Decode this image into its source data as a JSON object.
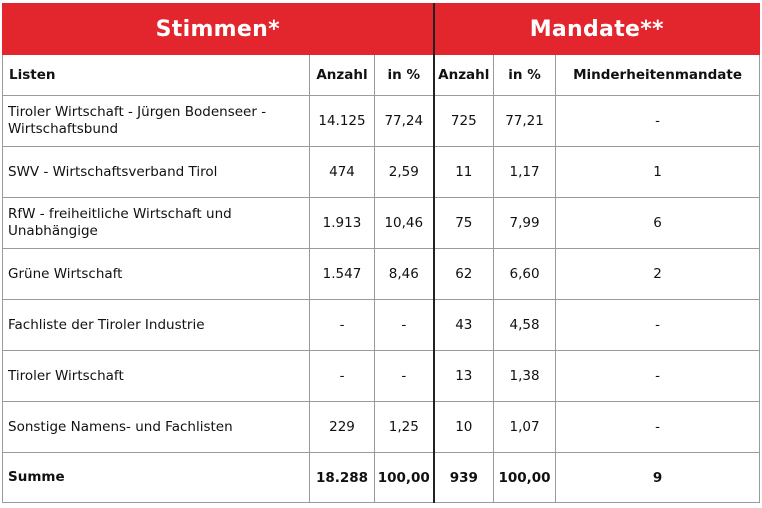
{
  "header": {
    "stimmen": "Stimmen*",
    "mandate": "Mandate**"
  },
  "columns": {
    "listen": "Listen",
    "stimmen_anzahl": "Anzahl",
    "stimmen_prozent": "in %",
    "mandate_anzahl": "Anzahl",
    "mandate_prozent": "in %",
    "minderheiten": "Minderheitenmandate"
  },
  "rows": [
    {
      "name": "Tiroler Wirtschaft - Jürgen Bodenseer - Wirtschaftsbund",
      "stimmen_anzahl": "14.125",
      "stimmen_prozent": "77,24",
      "mandate_anzahl": "725",
      "mandate_prozent": "77,21",
      "minderheiten": "-"
    },
    {
      "name": "SWV  - Wirtschaftsverband Tirol",
      "stimmen_anzahl": "474",
      "stimmen_prozent": "2,59",
      "mandate_anzahl": "11",
      "mandate_prozent": "1,17",
      "minderheiten": "1"
    },
    {
      "name": "RfW - freiheitliche Wirtschaft und Unabhängige",
      "stimmen_anzahl": "1.913",
      "stimmen_prozent": "10,46",
      "mandate_anzahl": "75",
      "mandate_prozent": "7,99",
      "minderheiten": "6"
    },
    {
      "name": "Grüne Wirtschaft",
      "stimmen_anzahl": "1.547",
      "stimmen_prozent": "8,46",
      "mandate_anzahl": "62",
      "mandate_prozent": "6,60",
      "minderheiten": "2"
    },
    {
      "name": "Fachliste der Tiroler Industrie",
      "stimmen_anzahl": "-",
      "stimmen_prozent": "-",
      "mandate_anzahl": "43",
      "mandate_prozent": "4,58",
      "minderheiten": "-"
    },
    {
      "name": "Tiroler Wirtschaft",
      "stimmen_anzahl": "-",
      "stimmen_prozent": "-",
      "mandate_anzahl": "13",
      "mandate_prozent": "1,38",
      "minderheiten": "-"
    },
    {
      "name": "Sonstige Namens- und Fachlisten",
      "stimmen_anzahl": "229",
      "stimmen_prozent": "1,25",
      "mandate_anzahl": "10",
      "mandate_prozent": "1,07",
      "minderheiten": "-"
    }
  ],
  "summe": {
    "name": "Summe",
    "stimmen_anzahl": "18.288",
    "stimmen_prozent": "100,00",
    "mandate_anzahl": "939",
    "mandate_prozent": "100,00",
    "minderheiten": "9"
  },
  "colors": {
    "header_red": "#e3262d",
    "header_text": "#ffffff"
  }
}
